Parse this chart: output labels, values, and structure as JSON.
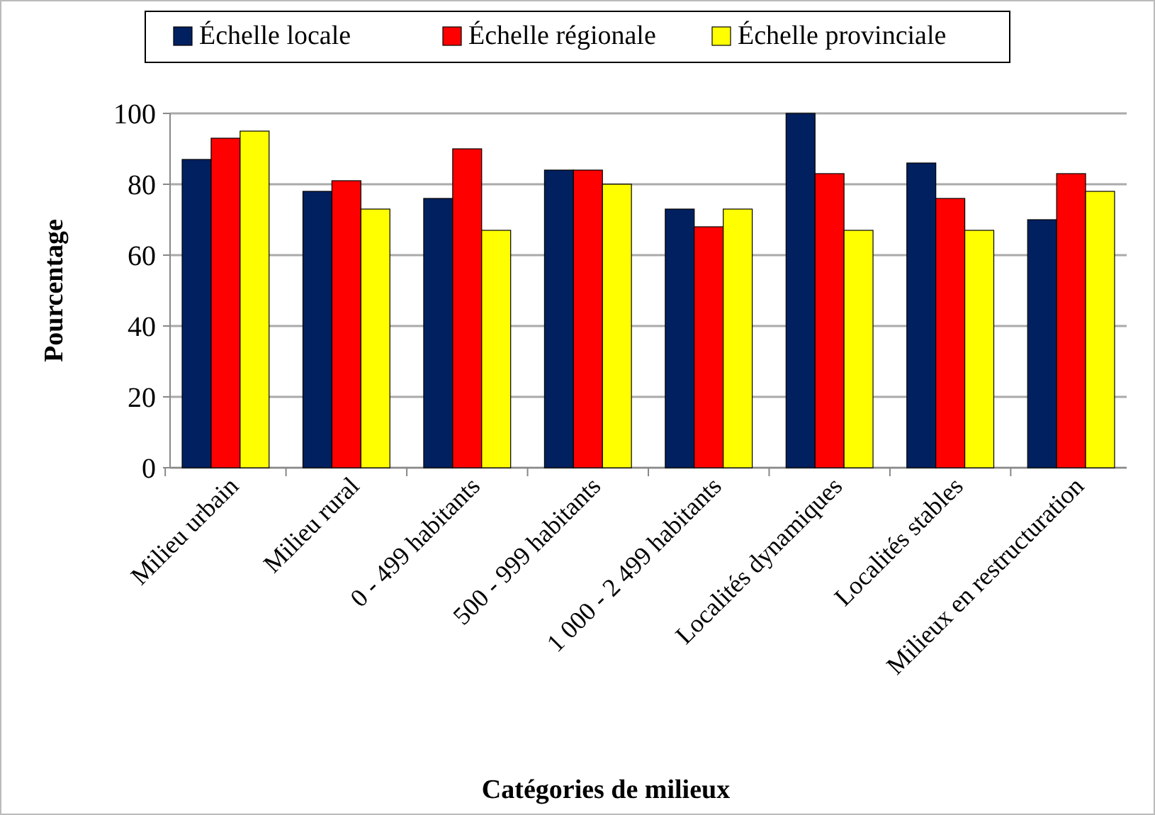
{
  "chart_data": {
    "type": "bar",
    "xlabel": "Catégories de milieux",
    "ylabel": "Pourcentage",
    "categories": [
      "Milieu urbain",
      "Milieu rural",
      "0 - 499 habitants",
      "500 - 999 habitants",
      "1 000 - 2 499 habitants",
      "Localités dynamiques",
      "Localités stables",
      "Milieux en restructuration"
    ],
    "series": [
      {
        "name": "Échelle locale",
        "color": "#002060",
        "values": [
          87,
          78,
          76,
          84,
          73,
          100,
          86,
          70
        ]
      },
      {
        "name": "Échelle régionale",
        "color": "#ff0000",
        "values": [
          93,
          81,
          90,
          84,
          68,
          83,
          76,
          83
        ]
      },
      {
        "name": "Échelle provinciale",
        "color": "#ffff00",
        "values": [
          95,
          73,
          67,
          80,
          73,
          67,
          67,
          78
        ]
      }
    ],
    "ylim": [
      0,
      100
    ],
    "yticks": [
      0,
      20,
      40,
      60,
      80,
      100
    ],
    "grid": "y",
    "legend": "top"
  }
}
